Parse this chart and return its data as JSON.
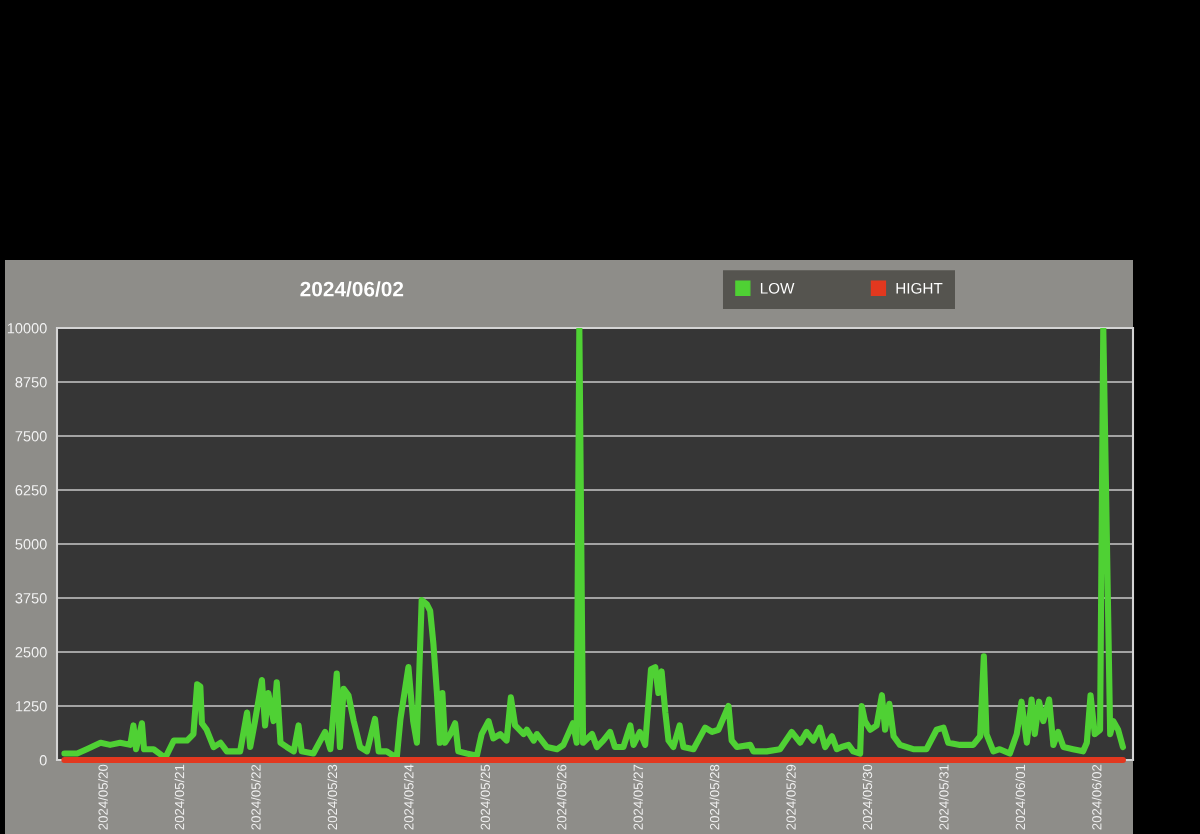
{
  "chart_data": {
    "type": "line",
    "title": "2024/06/02",
    "xlim": [
      "2024-05-19T09:10",
      "2024-06-02T11:00"
    ],
    "xticks": [
      {
        "value": "2024-05-20",
        "label": "2024/05/20"
      },
      {
        "value": "2024-05-21",
        "label": "2024/05/21"
      },
      {
        "value": "2024-05-22",
        "label": "2024/05/22"
      },
      {
        "value": "2024-05-23",
        "label": "2024/05/23"
      },
      {
        "value": "2024-05-24",
        "label": "2024/05/24"
      },
      {
        "value": "2024-05-25",
        "label": "2024/05/25"
      },
      {
        "value": "2024-05-26",
        "label": "2024/05/26"
      },
      {
        "value": "2024-05-27",
        "label": "2024/05/27"
      },
      {
        "value": "2024-05-28",
        "label": "2024/05/28"
      },
      {
        "value": "2024-05-29",
        "label": "2024/05/29"
      },
      {
        "value": "2024-05-30",
        "label": "2024/05/30"
      },
      {
        "value": "2024-05-31",
        "label": "2024/05/31"
      },
      {
        "value": "2024-06-01",
        "label": "2024/06/01"
      },
      {
        "value": "2024-06-02",
        "label": "2024/06/02"
      }
    ],
    "ylim": [
      0,
      10000
    ],
    "yticks": [
      0,
      1250,
      2500,
      3750,
      5000,
      6250,
      7500,
      8750,
      10000
    ],
    "grid": "y",
    "legend": "top right",
    "series": [
      {
        "name": "LOW",
        "color": "#4fd134",
        "x": [
          "2024-05-19T11:30",
          "2024-05-19T15:30",
          "2024-05-19T18:30",
          "2024-05-19T22:50",
          "2024-05-20T01:50",
          "2024-05-20T05:00",
          "2024-05-20T08:10",
          "2024-05-20T09:10",
          "2024-05-20T10:00",
          "2024-05-20T11:50",
          "2024-05-20T12:30",
          "2024-05-20T15:30",
          "2024-05-20T19:10",
          "2024-05-20T21:50",
          "2024-05-21T02:00",
          "2024-05-21T04:00",
          "2024-05-21T05:10",
          "2024-05-21T06:10",
          "2024-05-21T06:40",
          "2024-05-21T08:10",
          "2024-05-21T10:20",
          "2024-05-21T12:30",
          "2024-05-21T14:30",
          "2024-05-21T18:40",
          "2024-05-21T20:50",
          "2024-05-21T21:50",
          "2024-05-21T23:20",
          "2024-05-22T01:30",
          "2024-05-22T02:30",
          "2024-05-22T03:30",
          "2024-05-22T05:10",
          "2024-05-22T06:10",
          "2024-05-22T07:20",
          "2024-05-22T09:20",
          "2024-05-22T11:30",
          "2024-05-22T13:00",
          "2024-05-22T14:00",
          "2024-05-22T17:40",
          "2024-05-22T21:20",
          "2024-05-22T23:00",
          "2024-05-23T01:00",
          "2024-05-23T02:00",
          "2024-05-23T03:10",
          "2024-05-23T04:40",
          "2024-05-23T06:20",
          "2024-05-23T08:20",
          "2024-05-23T10:30",
          "2024-05-23T13:00",
          "2024-05-23T14:10",
          "2024-05-23T16:40",
          "2024-05-23T19:50",
          "2024-05-23T21:00",
          "2024-05-23T23:30",
          "2024-05-24T01:00",
          "2024-05-24T02:10",
          "2024-05-24T03:40",
          "2024-05-24T05:20",
          "2024-05-24T06:20",
          "2024-05-24T07:20",
          "2024-05-24T08:30",
          "2024-05-24T09:20",
          "2024-05-24T10:10",
          "2024-05-24T11:00",
          "2024-05-24T12:40",
          "2024-05-24T14:10",
          "2024-05-24T15:10",
          "2024-05-24T17:50",
          "2024-05-24T21:00",
          "2024-05-24T22:30",
          "2024-05-25T00:40",
          "2024-05-25T02:10",
          "2024-05-25T04:20",
          "2024-05-25T06:20",
          "2024-05-25T07:40",
          "2024-05-25T09:00",
          "2024-05-25T11:40",
          "2024-05-25T12:40",
          "2024-05-25T14:50",
          "2024-05-25T15:50",
          "2024-05-25T19:00",
          "2024-05-25T22:10",
          "2024-05-26T00:10",
          "2024-05-26T03:10",
          "2024-05-26T04:20",
          "2024-05-26T05:10",
          "2024-05-26T06:20",
          "2024-05-26T09:10",
          "2024-05-26T10:40",
          "2024-05-26T12:40",
          "2024-05-26T14:50",
          "2024-05-26T16:20",
          "2024-05-26T19:00",
          "2024-05-26T21:10",
          "2024-05-26T22:10",
          "2024-05-27T00:10",
          "2024-05-27T01:50",
          "2024-05-27T03:40",
          "2024-05-27T05:00",
          "2024-05-27T06:00",
          "2024-05-27T07:00",
          "2024-05-27T08:10",
          "2024-05-27T09:10",
          "2024-05-27T10:40",
          "2024-05-27T12:40",
          "2024-05-27T13:50",
          "2024-05-27T17:00",
          "2024-05-27T20:40",
          "2024-05-27T22:50",
          "2024-05-28T00:50",
          "2024-05-28T04:00",
          "2024-05-28T05:00",
          "2024-05-28T06:40",
          "2024-05-28T10:50",
          "2024-05-28T11:50",
          "2024-05-28T16:00",
          "2024-05-28T20:10",
          "2024-05-28T23:50",
          "2024-05-29T02:30",
          "2024-05-29T04:30",
          "2024-05-29T06:40",
          "2024-05-29T08:40",
          "2024-05-29T10:20",
          "2024-05-29T12:30",
          "2024-05-29T14:00",
          "2024-05-29T15:30",
          "2024-05-29T17:40",
          "2024-05-29T19:10",
          "2024-05-29T21:20",
          "2024-05-29T21:50",
          "2024-05-29T22:50",
          "2024-05-30T00:30",
          "2024-05-30T02:30",
          "2024-05-30T04:10",
          "2024-05-30T05:10",
          "2024-05-30T06:30",
          "2024-05-30T07:50",
          "2024-05-30T09:50",
          "2024-05-30T14:00",
          "2024-05-30T18:10",
          "2024-05-30T21:20",
          "2024-05-30T23:30",
          "2024-05-31T01:00",
          "2024-05-31T04:40",
          "2024-05-31T08:50",
          "2024-05-31T11:00",
          "2024-05-31T12:10",
          "2024-05-31T13:00",
          "2024-05-31T15:10",
          "2024-05-31T17:10",
          "2024-05-31T20:20",
          "2024-05-31T22:30",
          "2024-06-01T00:00",
          "2024-06-01T01:40",
          "2024-06-01T03:10",
          "2024-06-01T04:10",
          "2024-06-01T05:30",
          "2024-06-01T06:50",
          "2024-06-01T08:40",
          "2024-06-01T10:00",
          "2024-06-01T11:30",
          "2024-06-01T13:10",
          "2024-06-01T16:10",
          "2024-06-01T19:20",
          "2024-06-01T20:30",
          "2024-06-01T21:40",
          "2024-06-01T23:00",
          "2024-06-02T00:40",
          "2024-06-02T01:40",
          "2024-06-02T03:50",
          "2024-06-02T04:50",
          "2024-06-02T06:20",
          "2024-06-02T07:50"
        ],
        "values": [
          150,
          150,
          250,
          400,
          350,
          400,
          350,
          800,
          250,
          850,
          250,
          250,
          50,
          450,
          450,
          600,
          1750,
          1700,
          850,
          700,
          300,
          400,
          200,
          200,
          1100,
          300,
          900,
          1850,
          800,
          1550,
          900,
          1800,
          400,
          300,
          200,
          800,
          200,
          150,
          650,
          250,
          2000,
          300,
          1650,
          1500,
          900,
          300,
          200,
          950,
          200,
          200,
          50,
          950,
          2150,
          900,
          400,
          3700,
          3600,
          3450,
          2700,
          1500,
          400,
          1550,
          400,
          600,
          850,
          200,
          150,
          100,
          600,
          900,
          500,
          600,
          450,
          1450,
          800,
          600,
          700,
          450,
          600,
          300,
          250,
          350,
          850,
          400,
          10000,
          400,
          600,
          300,
          450,
          650,
          300,
          300,
          800,
          350,
          650,
          350,
          2100,
          2150,
          1550,
          2050,
          1100,
          450,
          300,
          800,
          300,
          250,
          750,
          650,
          700,
          1250,
          450,
          300,
          350,
          200,
          200,
          250,
          650,
          400,
          650,
          450,
          750,
          300,
          550,
          250,
          300,
          350,
          200,
          150,
          1250,
          900,
          700,
          800,
          1500,
          700,
          1300,
          550,
          350,
          250,
          250,
          700,
          750,
          400,
          350,
          350,
          550,
          2400,
          600,
          200,
          250,
          150,
          600,
          1350,
          400,
          1400,
          600,
          1350,
          900,
          1400,
          350,
          650,
          300,
          250,
          200,
          400,
          1500,
          600,
          700,
          10000,
          600,
          900,
          700,
          300
        ]
      },
      {
        "name": "HIGHT",
        "color": "#e2381f",
        "x": [
          "2024-05-19T11:30",
          "2024-06-02T07:50"
        ],
        "values": [
          0,
          0
        ]
      }
    ]
  }
}
